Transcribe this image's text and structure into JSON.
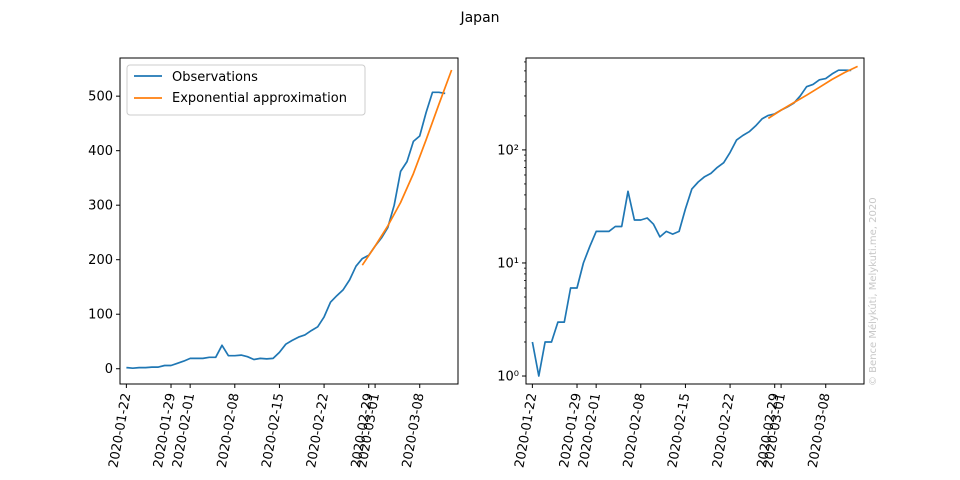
{
  "figure": {
    "title": "Japan",
    "watermark": "© Bence Mélykúti, Melykuti.me, 2020"
  },
  "chart_data": [
    {
      "type": "line",
      "scale": "linear",
      "title": "",
      "xlabel": "",
      "ylabel": "",
      "ylim": [
        -28,
        570
      ],
      "yticks": [
        0,
        100,
        200,
        300,
        400,
        500
      ],
      "xticks": [
        "2020-01-22",
        "2020-01-29",
        "2020-02-01",
        "2020-02-08",
        "2020-02-15",
        "2020-02-22",
        "2020-02-29",
        "2020-03-01",
        "2020-03-08"
      ],
      "legend": {
        "position": "top-left",
        "entries": [
          "Observations",
          "Exponential approximation"
        ]
      },
      "series": [
        {
          "name": "Observations",
          "color": "#1f77b4",
          "x": [
            "2020-01-22",
            "2020-01-23",
            "2020-01-24",
            "2020-01-25",
            "2020-01-26",
            "2020-01-27",
            "2020-01-28",
            "2020-01-29",
            "2020-01-30",
            "2020-01-31",
            "2020-02-01",
            "2020-02-02",
            "2020-02-03",
            "2020-02-04",
            "2020-02-05",
            "2020-02-06",
            "2020-02-07",
            "2020-02-08",
            "2020-02-09",
            "2020-02-10",
            "2020-02-11",
            "2020-02-12",
            "2020-02-13",
            "2020-02-14",
            "2020-02-15",
            "2020-02-16",
            "2020-02-17",
            "2020-02-18",
            "2020-02-19",
            "2020-02-20",
            "2020-02-21",
            "2020-02-22",
            "2020-02-23",
            "2020-02-24",
            "2020-02-25",
            "2020-02-26",
            "2020-02-27",
            "2020-02-28",
            "2020-02-29",
            "2020-03-01",
            "2020-03-02",
            "2020-03-03",
            "2020-03-04",
            "2020-03-05",
            "2020-03-06",
            "2020-03-07",
            "2020-03-08",
            "2020-03-09",
            "2020-03-10",
            "2020-03-11",
            "2020-03-12"
          ],
          "values": [
            2,
            1,
            2,
            2,
            3,
            3,
            6,
            6,
            10,
            14,
            19,
            19,
            19,
            21,
            21,
            43,
            24,
            24,
            25,
            22,
            17,
            19,
            18,
            19,
            30,
            45,
            52,
            58,
            62,
            70,
            77,
            95,
            122,
            134,
            145,
            163,
            188,
            202,
            208,
            225,
            240,
            259,
            300,
            362,
            380,
            417,
            427,
            470,
            507,
            507,
            505
          ]
        },
        {
          "name": "Exponential approximation",
          "color": "#ff7f0e",
          "x": [
            "2020-02-28",
            "2020-03-01",
            "2020-03-03",
            "2020-03-05",
            "2020-03-07",
            "2020-03-09",
            "2020-03-11",
            "2020-03-13"
          ],
          "values": [
            190,
            225,
            262,
            305,
            358,
            420,
            485,
            548
          ]
        }
      ]
    },
    {
      "type": "line",
      "scale": "log",
      "title": "",
      "xlabel": "",
      "ylabel": "",
      "ylim": [
        0.85,
        650
      ],
      "yticks": [
        1,
        10,
        100
      ],
      "ytick_labels": [
        "10⁰",
        "10¹",
        "10²"
      ],
      "xticks": [
        "2020-01-22",
        "2020-01-29",
        "2020-02-01",
        "2020-02-08",
        "2020-02-15",
        "2020-02-22",
        "2020-02-29",
        "2020-03-01",
        "2020-03-08"
      ],
      "series_ref": "same as left panel"
    }
  ]
}
